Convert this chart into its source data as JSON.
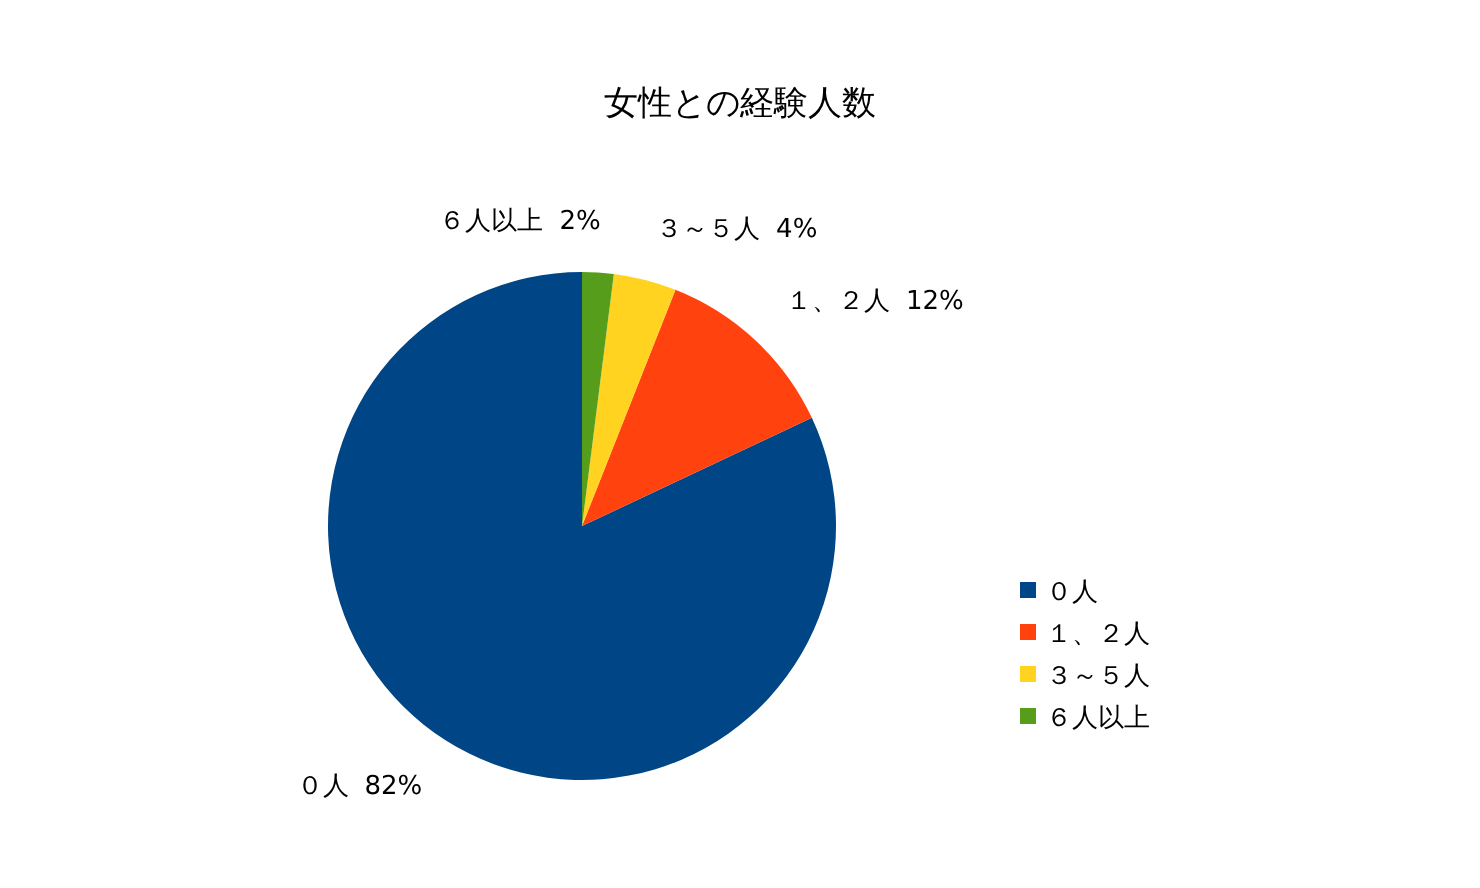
{
  "chart_data": {
    "type": "pie",
    "title": "女性との経験人数",
    "categories": [
      "０人",
      "１、２人",
      "３～５人",
      "６人以上"
    ],
    "values": [
      82,
      12,
      4,
      2
    ],
    "value_labels": [
      "82%",
      "12%",
      "4%",
      "2%"
    ],
    "colors": [
      "#004586",
      "#ff420e",
      "#ffd320",
      "#579d1c"
    ],
    "legend": "right"
  }
}
